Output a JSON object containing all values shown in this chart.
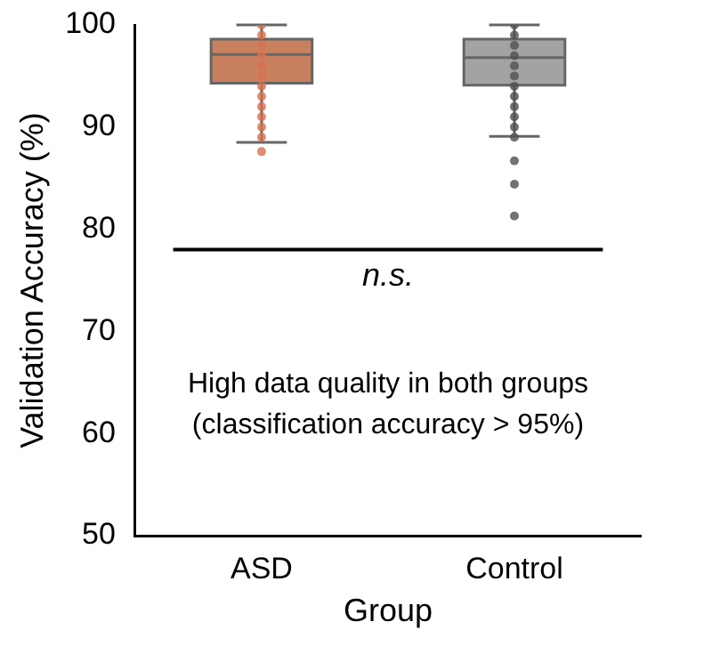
{
  "chart_data": {
    "type": "box",
    "xlabel": "Group",
    "ylabel": "Validation Accuracy (%)",
    "categories": [
      "ASD",
      "Control"
    ],
    "ylim": [
      50,
      100
    ],
    "yticks": [
      50,
      60,
      70,
      80,
      90,
      100
    ],
    "grid": false,
    "legend": false,
    "series": [
      {
        "colors": [
          "#c9805f",
          "#a3a3a3"
        ],
        "boxes": [
          {
            "low": 88.5,
            "q1": 94.3,
            "median": 97.1,
            "q3": 98.6,
            "high": 100
          },
          {
            "low": 89.1,
            "q1": 94.1,
            "median": 96.8,
            "q3": 98.6,
            "high": 100
          }
        ]
      },
      {
        "type": "scatter",
        "color": "#d8714c",
        "x": [
          "ASD",
          "ASD",
          "ASD",
          "ASD",
          "ASD",
          "ASD",
          "ASD",
          "ASD",
          "ASD",
          "ASD",
          "ASD",
          "ASD",
          "ASD"
        ],
        "values": [
          100,
          99,
          98,
          97,
          96,
          95,
          94,
          93,
          92,
          91,
          90,
          89,
          87.6
        ]
      },
      {
        "type": "scatter",
        "color": "#505050",
        "x": [
          "Control",
          "Control",
          "Control",
          "Control",
          "Control",
          "Control",
          "Control",
          "Control",
          "Control",
          "Control",
          "Control",
          "Control",
          "Control",
          "Control",
          "Control"
        ],
        "values": [
          100,
          99,
          98,
          97,
          96,
          95,
          94,
          93,
          92,
          91,
          90,
          89,
          86.7,
          84.4,
          81.3
        ]
      }
    ],
    "ref_lines": [
      {
        "axis": "y",
        "value": 78,
        "label": "n.s."
      }
    ],
    "annotations": [
      "High data quality in both groups\n(classification accuracy > 95%)"
    ]
  }
}
